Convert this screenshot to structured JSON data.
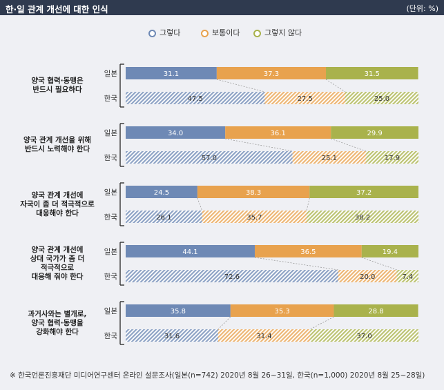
{
  "header": {
    "title": "한·일 관계 개선에 대한 인식",
    "unit": "(단위: %)"
  },
  "colors": {
    "header_bg": "#2f3a4f",
    "panel_bg": "#eff0f4",
    "series": [
      "#6e89b5",
      "#e8a24e",
      "#a9b24c"
    ]
  },
  "chart_data": {
    "type": "bar",
    "orientation": "horizontal",
    "stacked": true,
    "percent": true,
    "series": [
      {
        "name": "그렇다"
      },
      {
        "name": "보통이다"
      },
      {
        "name": "그렇지 않다"
      }
    ],
    "row_labels": [
      "일본",
      "한국"
    ],
    "categories": [
      {
        "label": [
          "양국 협력·동맹은",
          "반드시 필요하다"
        ],
        "rows": [
          {
            "name": "일본",
            "values": [
              31.1,
              37.3,
              31.5
            ]
          },
          {
            "name": "한국",
            "values": [
              47.5,
              27.5,
              25.0
            ]
          }
        ]
      },
      {
        "label": [
          "양국 관계 개선을 위해",
          "반드시 노력해야 한다"
        ],
        "rows": [
          {
            "name": "일본",
            "values": [
              34.0,
              36.1,
              29.9
            ]
          },
          {
            "name": "한국",
            "values": [
              57.0,
              25.1,
              17.9
            ]
          }
        ]
      },
      {
        "label": [
          "양국 관계 개선에",
          "자국이 좀 더 적극적으로",
          "대응해야 한다"
        ],
        "rows": [
          {
            "name": "일본",
            "values": [
              24.5,
              38.3,
              37.2
            ]
          },
          {
            "name": "한국",
            "values": [
              26.1,
              35.7,
              38.2
            ]
          }
        ]
      },
      {
        "label": [
          "양국 관계 개선에",
          "상대 국가가 좀 더",
          "적극적으로",
          "대응해 줘야 한다"
        ],
        "rows": [
          {
            "name": "일본",
            "values": [
              44.1,
              36.5,
              19.4
            ]
          },
          {
            "name": "한국",
            "values": [
              72.6,
              20.0,
              7.4
            ]
          }
        ]
      },
      {
        "label": [
          "과거사와는 별개로,",
          "양국 협력·동맹을",
          "강화해야 한다"
        ],
        "rows": [
          {
            "name": "일본",
            "values": [
              35.8,
              35.3,
              28.8
            ]
          },
          {
            "name": "한국",
            "values": [
              31.6,
              31.4,
              37.0
            ]
          }
        ]
      }
    ],
    "value_labels": [
      [
        "31.1",
        "37.3",
        "31.5",
        "47.5",
        "27.5",
        "25.0"
      ],
      [
        "34.0",
        "36.1",
        "29.9",
        "57.0",
        "25.1",
        "17.9"
      ],
      [
        "24.5",
        "38.3",
        "37.2",
        "26.1",
        "35.7",
        "38.2"
      ],
      [
        "44.1",
        "36.5",
        "19.4",
        "72.6",
        "20.0",
        "7.4"
      ],
      [
        "35.8",
        "35.3",
        "28.8",
        "31.6",
        "31.4",
        "37.0"
      ]
    ]
  },
  "footnote": "※ 한국언론진흥재단 미디어연구센터 온라인 설문조사(일본(n=742) 2020년 8월 26~31일, 한국(n=1,000) 2020년 8월 25~28일)"
}
